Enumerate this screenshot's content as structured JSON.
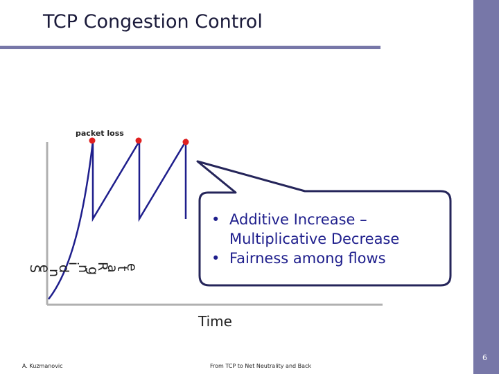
{
  "slide": {
    "title": "TCP Congestion Control",
    "number": "6",
    "footer_author": "A. Kuzmanovic",
    "footer_center": "From TCP to Net Neutrality and Back"
  },
  "diagram": {
    "packet_loss_label": "packet loss",
    "x_axis_label": "Time",
    "y_axis_letters": [
      "S",
      "e",
      "n",
      "d",
      "i",
      "n",
      "g",
      "R",
      "a",
      "t",
      "e"
    ]
  },
  "callout": {
    "bullets": [
      {
        "line1": "Additive Increase –",
        "line2": "Multiplicative Decrease"
      },
      {
        "line1": "Fairness among flows"
      }
    ]
  },
  "colors": {
    "accent": "#7777a8",
    "curve": "#1e1e8c",
    "loss_dot": "#e02020",
    "callout_border": "#25255a"
  }
}
